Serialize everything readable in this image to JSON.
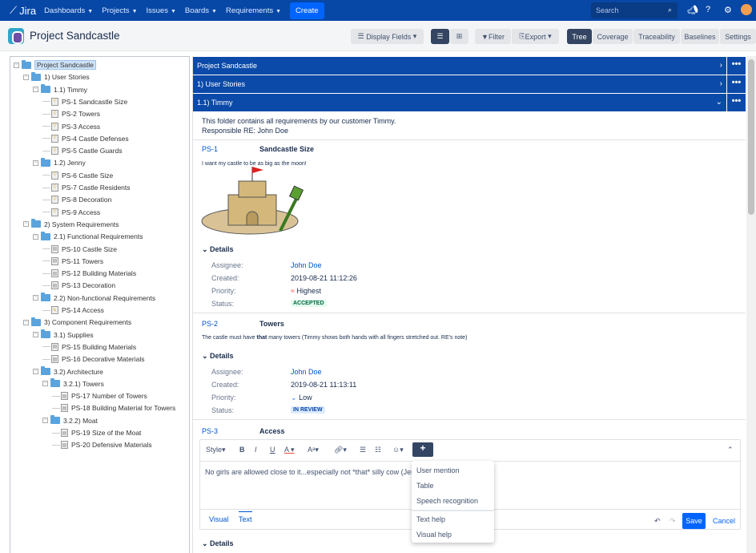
{
  "nav": {
    "logo": "Jira",
    "items": [
      "Dashboards",
      "Projects",
      "Issues",
      "Boards",
      "Requirements"
    ],
    "create": "Create",
    "search_placeholder": "Search"
  },
  "header": {
    "title": "Project Sandcastle",
    "display_fields": "Display Fields",
    "filter": "Filter",
    "export": "Export",
    "tabs": [
      "Tree",
      "Coverage",
      "Traceability",
      "Baselines",
      "Settings"
    ],
    "active_tab": "Tree"
  },
  "tree": [
    {
      "d": 0,
      "t": "folder",
      "label": "Project Sandcastle",
      "sel": true
    },
    {
      "d": 1,
      "t": "folder",
      "label": "1) User Stories"
    },
    {
      "d": 2,
      "t": "folder",
      "label": "1.1) Timmy"
    },
    {
      "d": 3,
      "t": "story",
      "label": "PS-1 Sandcastle Size"
    },
    {
      "d": 3,
      "t": "story",
      "label": "PS-2 Towers"
    },
    {
      "d": 3,
      "t": "story",
      "label": "PS-3 Access"
    },
    {
      "d": 3,
      "t": "story",
      "label": "PS-4 Castle Defenses"
    },
    {
      "d": 3,
      "t": "story",
      "label": "PS-5 Castle Guards"
    },
    {
      "d": 2,
      "t": "folder",
      "label": "1.2) Jenny"
    },
    {
      "d": 3,
      "t": "story",
      "label": "PS-6 Castle Size"
    },
    {
      "d": 3,
      "t": "story",
      "label": "PS-7 Castle Residents"
    },
    {
      "d": 3,
      "t": "story",
      "label": "PS-8 Decoration"
    },
    {
      "d": 3,
      "t": "story",
      "label": "PS-9 Access"
    },
    {
      "d": 1,
      "t": "folder",
      "label": "2) System Requirements"
    },
    {
      "d": 2,
      "t": "folder",
      "label": "2.1) Functional Requirements"
    },
    {
      "d": 3,
      "t": "req",
      "label": "PS-10 Castle Size"
    },
    {
      "d": 3,
      "t": "req",
      "label": "PS-11 Towers"
    },
    {
      "d": 3,
      "t": "req",
      "label": "PS-12 Building Materials"
    },
    {
      "d": 3,
      "t": "req",
      "label": "PS-13 Decoration"
    },
    {
      "d": 2,
      "t": "folder",
      "label": "2.2) Non-functional Requirements"
    },
    {
      "d": 3,
      "t": "nfr",
      "label": "PS-14 Access"
    },
    {
      "d": 1,
      "t": "folder",
      "label": "3) Component Requirements"
    },
    {
      "d": 2,
      "t": "folder",
      "label": "3.1) Supplies"
    },
    {
      "d": 3,
      "t": "req",
      "label": "PS-15 Building Materials"
    },
    {
      "d": 3,
      "t": "req",
      "label": "PS-16 Decorative Materials"
    },
    {
      "d": 2,
      "t": "folder",
      "label": "3.2) Architecture"
    },
    {
      "d": 3,
      "t": "folder",
      "label": "3.2.1) Towers"
    },
    {
      "d": 4,
      "t": "req",
      "label": "PS-17 Number of Towers"
    },
    {
      "d": 4,
      "t": "req",
      "label": "PS-18 Building Material for Towers"
    },
    {
      "d": 3,
      "t": "folder",
      "label": "3.2.2) Moat"
    },
    {
      "d": 4,
      "t": "req",
      "label": "PS-19 Size of the Moat"
    },
    {
      "d": 4,
      "t": "req",
      "label": "PS-20 Defensive Materials"
    }
  ],
  "bars": [
    "Project Sandcastle",
    "1) User Stories",
    "1.1) Timmy"
  ],
  "folder_desc": [
    "This folder contains all requirements by our customer Timmy.",
    "Responsible RE: John Doe"
  ],
  "labels": {
    "details": "Details",
    "assignee": "Assignee:",
    "created": "Created:",
    "priority": "Priority:",
    "status": "Status:"
  },
  "items": [
    {
      "key": "PS-1",
      "title": "Sandcastle Size",
      "desc": "I want my castle to be as big as the moon!",
      "assignee": "John Doe",
      "created": "2019-08-21 11:12:26",
      "priority": "Highest",
      "status": "ACCEPTED"
    },
    {
      "key": "PS-2",
      "title": "Towers",
      "desc_pre": "The castle must have ",
      "desc_bold": "that",
      "desc_post": " many towers (Timmy shows both hands with all fingers stretched out. RE's note)",
      "assignee": "John Doe",
      "created": "2019-08-21 11:13:11",
      "priority": "Low",
      "status": "IN REVIEW"
    },
    {
      "key": "PS-3",
      "title": "Access"
    }
  ],
  "editor": {
    "style": "Style",
    "text": "No girls are allowed close to it...especially not *that* silly cow (Jenny",
    "tabs": [
      "Visual",
      "Text"
    ],
    "save": "Save",
    "cancel": "Cancel"
  },
  "menu": [
    "User mention",
    "Table",
    "Speech recognition",
    "Text help",
    "Visual help"
  ],
  "colors": {
    "nav": "#0747a6",
    "accent": "#0065ff",
    "accepted": "#006644",
    "in_review": "#0747a6"
  }
}
